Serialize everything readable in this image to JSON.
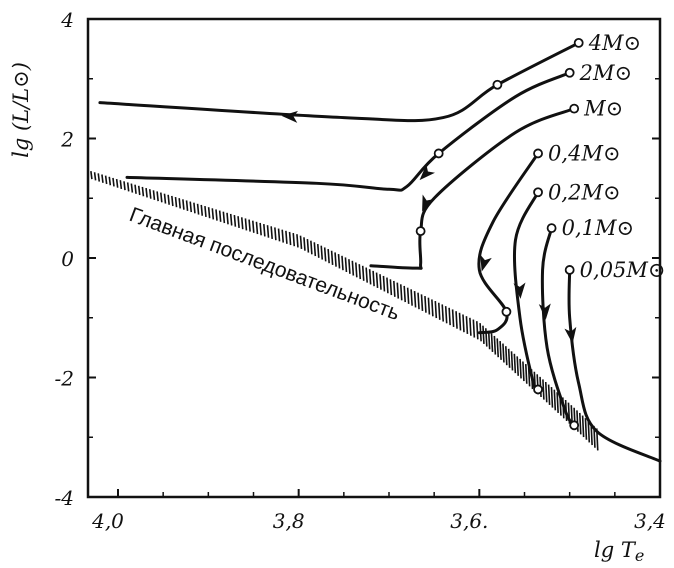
{
  "chart_data": {
    "type": "line",
    "xlabel": "lg T",
    "xlabel_sub": "e",
    "ylabel": "lg (L/L⊙)",
    "xlim": [
      4.05,
      3.4
    ],
    "ylim": [
      -4,
      4
    ],
    "x_reversed": true,
    "x_ticks": [
      4.0,
      3.8,
      3.6,
      3.4
    ],
    "x_tick_labels": [
      "4,0",
      "3,8",
      "3,6.",
      "3,4"
    ],
    "y_ticks": [
      4,
      2,
      0,
      -2,
      -4
    ],
    "y_tick_labels": [
      "4",
      "2",
      "0",
      "-2",
      "-4"
    ],
    "annotation": "Главная последовательность",
    "main_sequence": [
      {
        "x": 4.03,
        "y": 1.4
      },
      {
        "x": 3.8,
        "y": 0.3
      },
      {
        "x": 3.6,
        "y": -1.2
      },
      {
        "x": 3.52,
        "y": -2.3
      },
      {
        "x": 3.47,
        "y": -3.0
      }
    ],
    "series": [
      {
        "name": "4M⊙",
        "points": [
          {
            "x": 3.49,
            "y": 3.6
          },
          {
            "x": 3.58,
            "y": 2.9
          },
          {
            "x": 3.64,
            "y": 2.35
          },
          {
            "x": 3.75,
            "y": 2.35
          },
          {
            "x": 4.02,
            "y": 2.6
          }
        ],
        "markers": [
          0,
          1
        ],
        "arrows": [
          {
            "x": 3.81,
            "y": 2.37
          }
        ]
      },
      {
        "name": "2M⊙",
        "points": [
          {
            "x": 3.5,
            "y": 3.1
          },
          {
            "x": 3.56,
            "y": 2.7
          },
          {
            "x": 3.645,
            "y": 1.75
          },
          {
            "x": 3.68,
            "y": 1.2
          },
          {
            "x": 3.7,
            "y": 1.15
          },
          {
            "x": 3.78,
            "y": 1.25
          },
          {
            "x": 3.99,
            "y": 1.35
          }
        ],
        "markers": [
          0,
          2
        ],
        "arrows": [
          {
            "x": 3.66,
            "y": 1.4
          }
        ]
      },
      {
        "name": "M⊙",
        "points": [
          {
            "x": 3.495,
            "y": 2.5
          },
          {
            "x": 3.56,
            "y": 2.1
          },
          {
            "x": 3.65,
            "y": 1.0
          },
          {
            "x": 3.665,
            "y": 0.45
          },
          {
            "x": 3.665,
            "y": -0.1
          },
          {
            "x": 3.67,
            "y": -0.17
          },
          {
            "x": 3.72,
            "y": -0.13
          }
        ],
        "markers": [
          0,
          3
        ],
        "arrows": [
          {
            "x": 3.66,
            "y": 0.9
          }
        ]
      },
      {
        "name": "0,4M⊙",
        "points": [
          {
            "x": 3.535,
            "y": 1.75
          },
          {
            "x": 3.585,
            "y": 0.6
          },
          {
            "x": 3.6,
            "y": -0.2
          },
          {
            "x": 3.57,
            "y": -0.9
          },
          {
            "x": 3.58,
            "y": -1.2
          },
          {
            "x": 3.6,
            "y": -1.25
          }
        ],
        "markers": [
          0,
          3
        ],
        "arrows": [
          {
            "x": 3.595,
            "y": -0.1
          }
        ]
      },
      {
        "name": "0,2M⊙",
        "points": [
          {
            "x": 3.535,
            "y": 1.1
          },
          {
            "x": 3.56,
            "y": 0.3
          },
          {
            "x": 3.555,
            "y": -1.0
          },
          {
            "x": 3.54,
            "y": -2.1
          },
          {
            "x": 3.535,
            "y": -2.2
          }
        ],
        "markers": [
          0,
          4
        ],
        "arrows": [
          {
            "x": 3.555,
            "y": -0.55
          }
        ]
      },
      {
        "name": "0,1M⊙",
        "points": [
          {
            "x": 3.52,
            "y": 0.5
          },
          {
            "x": 3.53,
            "y": -0.2
          },
          {
            "x": 3.525,
            "y": -1.5
          },
          {
            "x": 3.505,
            "y": -2.55
          },
          {
            "x": 3.495,
            "y": -2.8
          }
        ],
        "markers": [
          0,
          4
        ],
        "arrows": [
          {
            "x": 3.527,
            "y": -0.9
          }
        ]
      },
      {
        "name": "0,05M⊙",
        "points": [
          {
            "x": 3.5,
            "y": -0.2
          },
          {
            "x": 3.5,
            "y": -1.0
          },
          {
            "x": 3.49,
            "y": -2.1
          },
          {
            "x": 3.47,
            "y": -2.9
          },
          {
            "x": 3.4,
            "y": -3.4
          }
        ],
        "markers": [
          0
        ],
        "arrows": [
          {
            "x": 3.498,
            "y": -1.3
          }
        ]
      }
    ]
  }
}
